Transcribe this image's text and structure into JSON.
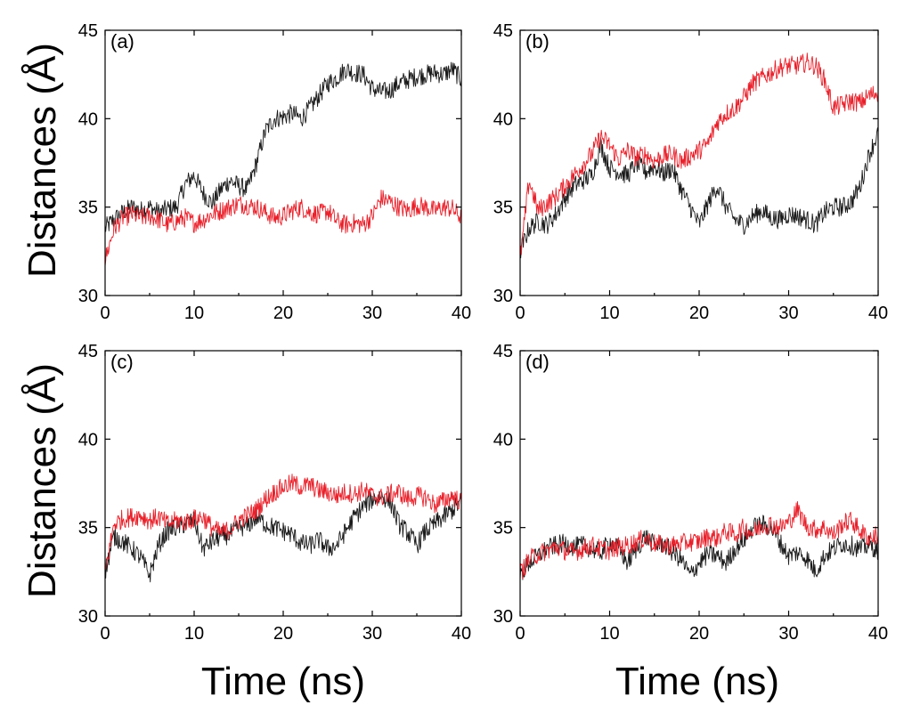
{
  "figure": {
    "shared_ylabel": "Distances (Å)",
    "shared_xlabel": "Time (ns)"
  },
  "colors": {
    "black": "#1a1a1a",
    "red": "#e8202a"
  },
  "chart_data": [
    {
      "type": "line",
      "panel": "(a)",
      "xlim": [
        0,
        40
      ],
      "ylim": [
        30,
        45
      ],
      "xticks": [
        0,
        10,
        20,
        30,
        40
      ],
      "yticks": [
        30,
        35,
        40,
        45
      ],
      "series": [
        {
          "name": "black",
          "color": "#1a1a1a",
          "x": [
            0,
            1,
            2,
            3,
            4,
            5,
            6,
            7,
            8,
            9,
            10,
            11,
            12,
            13,
            14,
            15,
            16,
            17,
            18,
            19,
            20,
            21,
            22,
            23,
            24,
            25,
            26,
            27,
            28,
            29,
            30,
            31,
            32,
            33,
            34,
            35,
            36,
            37,
            38,
            39,
            40
          ],
          "y": [
            33.8,
            34.3,
            34.7,
            35.0,
            34.8,
            35.0,
            34.7,
            34.9,
            35.0,
            36.3,
            36.8,
            35.8,
            35.2,
            36.0,
            36.5,
            36.2,
            36.0,
            37.5,
            39.3,
            40.0,
            40.1,
            40.3,
            40.0,
            40.6,
            41.3,
            42.0,
            42.3,
            42.8,
            42.6,
            42.5,
            41.7,
            41.5,
            41.6,
            42.0,
            42.2,
            42.4,
            42.5,
            42.6,
            42.5,
            42.8,
            42.2
          ]
        },
        {
          "name": "red",
          "color": "#e8202a",
          "x": [
            0,
            1,
            2,
            3,
            4,
            5,
            6,
            7,
            8,
            9,
            10,
            11,
            12,
            13,
            14,
            15,
            16,
            17,
            18,
            19,
            20,
            21,
            22,
            23,
            24,
            25,
            26,
            27,
            28,
            29,
            30,
            31,
            32,
            33,
            34,
            35,
            36,
            37,
            38,
            39,
            40
          ],
          "y": [
            32.0,
            33.8,
            34.4,
            34.6,
            34.4,
            34.5,
            34.3,
            34.0,
            34.2,
            34.4,
            34.1,
            34.3,
            34.6,
            34.8,
            35.0,
            35.2,
            35.1,
            35.0,
            34.7,
            34.4,
            34.5,
            34.8,
            35.0,
            34.7,
            34.6,
            34.8,
            34.2,
            34.0,
            34.1,
            34.0,
            34.5,
            35.5,
            35.3,
            35.0,
            34.8,
            35.1,
            35.0,
            34.8,
            35.0,
            34.9,
            34.4
          ]
        }
      ]
    },
    {
      "type": "line",
      "panel": "(b)",
      "xlim": [
        0,
        40
      ],
      "ylim": [
        30,
        45
      ],
      "xticks": [
        0,
        10,
        20,
        30,
        40
      ],
      "yticks": [
        30,
        35,
        40,
        45
      ],
      "series": [
        {
          "name": "black",
          "color": "#1a1a1a",
          "x": [
            0,
            1,
            2,
            3,
            4,
            5,
            6,
            7,
            8,
            9,
            10,
            11,
            12,
            13,
            14,
            15,
            16,
            17,
            18,
            19,
            20,
            21,
            22,
            23,
            24,
            25,
            26,
            27,
            28,
            29,
            30,
            31,
            32,
            33,
            34,
            35,
            36,
            37,
            38,
            39,
            40
          ],
          "y": [
            32.5,
            33.8,
            34.2,
            34.0,
            34.6,
            35.5,
            36.2,
            36.5,
            36.8,
            38.5,
            37.2,
            37.0,
            36.8,
            37.5,
            37.0,
            37.3,
            36.9,
            37.2,
            36.0,
            35.0,
            34.0,
            35.2,
            36.2,
            35.0,
            34.3,
            34.0,
            34.5,
            34.8,
            34.4,
            34.3,
            34.6,
            34.5,
            34.3,
            34.0,
            34.7,
            35.0,
            35.0,
            35.3,
            36.2,
            38.0,
            39.2
          ]
        },
        {
          "name": "red",
          "color": "#e8202a",
          "x": [
            0,
            1,
            2,
            3,
            4,
            5,
            6,
            7,
            8,
            9,
            10,
            11,
            12,
            13,
            14,
            15,
            16,
            17,
            18,
            19,
            20,
            21,
            22,
            23,
            24,
            25,
            26,
            27,
            28,
            29,
            30,
            31,
            32,
            33,
            34,
            35,
            36,
            37,
            38,
            39,
            40
          ],
          "y": [
            32.0,
            36.5,
            34.8,
            35.2,
            35.6,
            36.2,
            36.8,
            37.4,
            38.0,
            39.0,
            38.5,
            37.7,
            38.2,
            37.8,
            38.0,
            37.6,
            37.9,
            38.0,
            37.6,
            37.9,
            38.2,
            38.6,
            39.8,
            40.3,
            40.6,
            41.2,
            42.0,
            42.3,
            42.6,
            42.9,
            43.0,
            43.0,
            43.2,
            43.0,
            42.2,
            40.6,
            40.8,
            41.0,
            40.9,
            41.3,
            41.5
          ]
        }
      ]
    },
    {
      "type": "line",
      "panel": "(c)",
      "xlim": [
        0,
        40
      ],
      "ylim": [
        30,
        45
      ],
      "xticks": [
        0,
        10,
        20,
        30,
        40
      ],
      "yticks": [
        30,
        35,
        40,
        45
      ],
      "series": [
        {
          "name": "black",
          "color": "#1a1a1a",
          "x": [
            0,
            1,
            2,
            3,
            4,
            5,
            6,
            7,
            8,
            9,
            10,
            11,
            12,
            13,
            14,
            15,
            16,
            17,
            18,
            19,
            20,
            21,
            22,
            23,
            24,
            25,
            26,
            27,
            28,
            29,
            30,
            31,
            32,
            33,
            34,
            35,
            36,
            37,
            38,
            39,
            40
          ],
          "y": [
            32.5,
            34.5,
            34.2,
            33.8,
            33.3,
            32.3,
            34.0,
            34.8,
            35.0,
            35.2,
            35.4,
            33.8,
            34.2,
            34.5,
            34.6,
            35.0,
            35.1,
            35.6,
            35.2,
            35.0,
            34.8,
            34.6,
            34.1,
            34.0,
            34.3,
            33.8,
            34.0,
            34.8,
            35.6,
            36.2,
            36.6,
            36.8,
            36.5,
            35.2,
            34.7,
            34.0,
            34.8,
            35.2,
            35.6,
            36.0,
            36.5
          ]
        },
        {
          "name": "red",
          "color": "#e8202a",
          "x": [
            0,
            1,
            2,
            3,
            4,
            5,
            6,
            7,
            8,
            9,
            10,
            11,
            12,
            13,
            14,
            15,
            16,
            17,
            18,
            19,
            20,
            21,
            22,
            23,
            24,
            25,
            26,
            27,
            28,
            29,
            30,
            31,
            32,
            33,
            34,
            35,
            36,
            37,
            38,
            39,
            40
          ],
          "y": [
            32.5,
            35.2,
            35.5,
            35.6,
            35.7,
            35.4,
            35.6,
            35.2,
            35.4,
            35.3,
            35.5,
            35.6,
            35.0,
            34.7,
            34.9,
            35.4,
            35.7,
            36.0,
            36.6,
            37.0,
            37.3,
            37.5,
            37.3,
            37.4,
            37.1,
            37.0,
            36.8,
            37.0,
            36.9,
            37.1,
            36.8,
            36.7,
            36.9,
            37.0,
            36.6,
            36.8,
            36.7,
            36.3,
            36.5,
            36.8,
            36.4
          ]
        }
      ]
    },
    {
      "type": "line",
      "panel": "(d)",
      "xlim": [
        0,
        40
      ],
      "ylim": [
        30,
        45
      ],
      "xticks": [
        0,
        10,
        20,
        30,
        40
      ],
      "yticks": [
        30,
        35,
        40,
        45
      ],
      "series": [
        {
          "name": "black",
          "color": "#1a1a1a",
          "x": [
            0,
            1,
            2,
            3,
            4,
            5,
            6,
            7,
            8,
            9,
            10,
            11,
            12,
            13,
            14,
            15,
            16,
            17,
            18,
            19,
            20,
            21,
            22,
            23,
            24,
            25,
            26,
            27,
            28,
            29,
            30,
            31,
            32,
            33,
            34,
            35,
            36,
            37,
            38,
            39,
            40
          ],
          "y": [
            32.3,
            33.0,
            33.4,
            33.8,
            34.0,
            34.1,
            33.9,
            34.0,
            33.8,
            33.6,
            34.2,
            33.8,
            33.0,
            33.8,
            34.5,
            34.0,
            34.1,
            33.6,
            33.2,
            32.3,
            33.0,
            33.5,
            33.4,
            33.0,
            33.8,
            34.3,
            35.0,
            35.2,
            35.0,
            34.2,
            33.4,
            33.6,
            33.3,
            32.5,
            33.4,
            33.8,
            34.1,
            34.0,
            33.8,
            34.0,
            33.7
          ]
        },
        {
          "name": "red",
          "color": "#e8202a",
          "x": [
            0,
            1,
            2,
            3,
            4,
            5,
            6,
            7,
            8,
            9,
            10,
            11,
            12,
            13,
            14,
            15,
            16,
            17,
            18,
            19,
            20,
            21,
            22,
            23,
            24,
            25,
            26,
            27,
            28,
            29,
            30,
            31,
            32,
            33,
            34,
            35,
            36,
            37,
            38,
            39,
            40
          ],
          "y": [
            32.4,
            33.2,
            33.5,
            33.7,
            33.9,
            33.7,
            33.6,
            33.8,
            34.0,
            33.8,
            33.7,
            33.9,
            34.0,
            34.2,
            34.4,
            34.1,
            34.0,
            34.0,
            34.1,
            34.2,
            34.2,
            34.5,
            34.4,
            34.8,
            34.6,
            35.0,
            34.7,
            35.1,
            35.2,
            35.0,
            35.3,
            36.0,
            35.1,
            34.9,
            35.0,
            34.6,
            35.2,
            35.4,
            34.8,
            34.4,
            34.6
          ]
        }
      ]
    }
  ]
}
